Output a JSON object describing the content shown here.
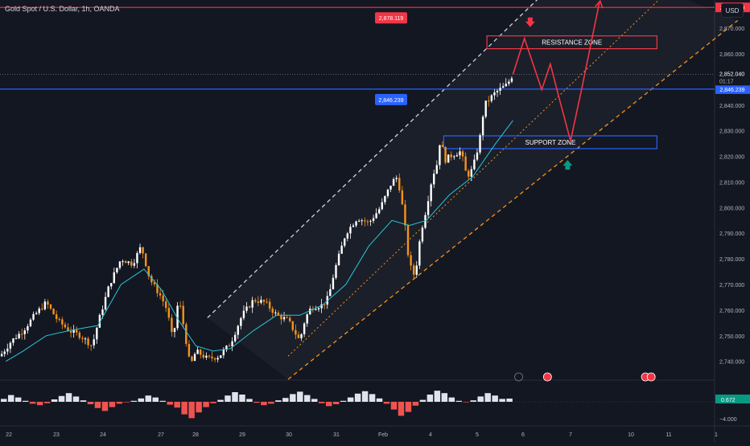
{
  "header": {
    "title": "Gold Spot / U.S. Dollar, 1h, OANDA",
    "currency_button": "USD"
  },
  "chart_data": {
    "type": "candlestick",
    "symbol": "Gold Spot / U.S. Dollar",
    "interval": "1h",
    "source": "OANDA",
    "y_axis": {
      "ticks": [
        2740,
        2750,
        2760,
        2770,
        2780,
        2790,
        2800,
        2810,
        2820,
        2830,
        2840,
        2850,
        2860,
        2870
      ],
      "ylim": [
        2733,
        2881
      ]
    },
    "x_axis": {
      "ticks": [
        "22",
        "23",
        "24",
        "27",
        "28",
        "29",
        "30",
        "31",
        "Feb",
        "4",
        "5",
        "6",
        "7",
        "10",
        "11",
        "1"
      ]
    },
    "price_path": [
      [
        0,
        2742
      ],
      [
        2,
        2748
      ],
      [
        4,
        2752
      ],
      [
        6,
        2758
      ],
      [
        8,
        2763
      ],
      [
        10,
        2756
      ],
      [
        12,
        2752
      ],
      [
        14,
        2750
      ],
      [
        16,
        2746
      ],
      [
        17,
        2755
      ],
      [
        19,
        2770
      ],
      [
        21,
        2780
      ],
      [
        23,
        2778
      ],
      [
        24.5,
        2785
      ],
      [
        26,
        2772
      ],
      [
        28,
        2765
      ],
      [
        29,
        2760
      ],
      [
        30,
        2748
      ],
      [
        31,
        2765
      ],
      [
        32,
        2752
      ],
      [
        33,
        2738
      ],
      [
        34,
        2744
      ],
      [
        36,
        2741
      ],
      [
        38,
        2742
      ],
      [
        40,
        2747
      ],
      [
        42,
        2758
      ],
      [
        44,
        2764
      ],
      [
        46,
        2763
      ],
      [
        48,
        2758
      ],
      [
        50,
        2756
      ],
      [
        52,
        2748
      ],
      [
        53,
        2757
      ],
      [
        54,
        2761
      ],
      [
        56,
        2762
      ],
      [
        57,
        2765
      ],
      [
        58,
        2775
      ],
      [
        60,
        2790
      ],
      [
        62,
        2796
      ],
      [
        64,
        2794
      ],
      [
        66,
        2800
      ],
      [
        68,
        2810
      ],
      [
        69,
        2812
      ],
      [
        70,
        2798
      ],
      [
        71,
        2778
      ],
      [
        72,
        2773
      ],
      [
        73,
        2790
      ],
      [
        74,
        2800
      ],
      [
        75,
        2812
      ],
      [
        76,
        2818
      ],
      [
        76.5,
        2830
      ],
      [
        77,
        2818
      ],
      [
        78,
        2820
      ],
      [
        79,
        2821
      ],
      [
        80,
        2822
      ],
      [
        81,
        2812
      ],
      [
        82,
        2815
      ],
      [
        83,
        2824
      ],
      [
        83.5,
        2830
      ],
      [
        84,
        2840
      ],
      [
        86,
        2845
      ],
      [
        88,
        2848
      ],
      [
        89,
        2852
      ]
    ],
    "price_ma": [
      [
        1,
        2740
      ],
      [
        4,
        2744
      ],
      [
        8,
        2750
      ],
      [
        12,
        2752
      ],
      [
        17,
        2754
      ],
      [
        21,
        2770
      ],
      [
        25,
        2776
      ],
      [
        28,
        2768
      ],
      [
        31,
        2756
      ],
      [
        34,
        2746
      ],
      [
        37,
        2744
      ],
      [
        40,
        2745
      ],
      [
        44,
        2752
      ],
      [
        48,
        2758
      ],
      [
        52,
        2758
      ],
      [
        56,
        2762
      ],
      [
        60,
        2770
      ],
      [
        64,
        2785
      ],
      [
        68,
        2795
      ],
      [
        71,
        2793
      ],
      [
        74,
        2795
      ],
      [
        78,
        2805
      ],
      [
        82,
        2812
      ],
      [
        86,
        2825
      ],
      [
        89,
        2834
      ]
    ],
    "x_max": 124,
    "levels": [
      {
        "name": "upper-resistance",
        "value": 2878.119,
        "label": "2,878.119",
        "color": "#f23645"
      },
      {
        "name": "current-support",
        "value": 2846.239,
        "label": "2,846.239",
        "color": "#2962ff"
      }
    ],
    "last_price": {
      "value": 2852.04,
      "label": "2,852.040",
      "countdown": "01:17"
    },
    "zones": [
      {
        "label": "RESISTANCE ZONE",
        "x1": 84.5,
        "x2": 114,
        "y_low": 2862,
        "y_high": 2867,
        "color": "#f23645"
      },
      {
        "label": "SUPPORT ZONE",
        "x1": 77,
        "x2": 114,
        "y_low": 2823,
        "y_high": 2828,
        "color": "#2962ff"
      }
    ],
    "channel": {
      "upper": {
        "x1": 36,
        "y1": 2757,
        "x2": 101,
        "y2": 2898
      },
      "middle": {
        "x1": 50,
        "y1": 2742,
        "x2": 118,
        "y2": 2889
      },
      "lower": {
        "x1": 50,
        "y1": 2733,
        "x2": 128,
        "y2": 2873
      }
    },
    "projection_path": [
      [
        89,
        2852
      ],
      [
        91,
        2866
      ],
      [
        94,
        2846
      ],
      [
        95.5,
        2856
      ],
      [
        97,
        2843
      ],
      [
        99,
        2826
      ],
      [
        101,
        2847
      ],
      [
        104,
        2880
      ]
    ],
    "arrows": [
      {
        "name": "down-arrow",
        "x": 92,
        "value": 2872,
        "direction": "down",
        "color": "#f23645"
      },
      {
        "name": "up-arrow",
        "x": 98.5,
        "value": 2817,
        "direction": "up",
        "color": "#089981"
      }
    ],
    "oscillator": {
      "value_label": "0.672",
      "ticks": [
        "−4.000"
      ],
      "histogram": [
        0.6,
        1.4,
        0.9,
        0.2,
        -0.4,
        -0.7,
        -0.3,
        0.5,
        1.2,
        1.8,
        1.1,
        0.3,
        -0.5,
        -1.3,
        -1.9,
        -1.1,
        -0.4,
        -0.1,
        0.2,
        0.7,
        1.3,
        0.9,
        0.2,
        -0.6,
        -1.2,
        -2.6,
        -3.4,
        -2.2,
        -1.1,
        -0.3,
        0.4,
        1.3,
        2.0,
        1.5,
        0.6,
        -0.2,
        -0.7,
        -0.4,
        0.3,
        0.8,
        1.6,
        2.1,
        1.4,
        0.6,
        -0.3,
        -0.9,
        -0.5,
        0.2,
        0.9,
        1.7,
        2.2,
        1.6,
        0.7,
        -0.4,
        -1.6,
        -2.9,
        -2.1,
        -0.8,
        0.4,
        1.5,
        2.3,
        1.8,
        0.9,
        0.2,
        -0.1,
        0.3,
        1.1,
        1.8,
        1.3,
        0.6,
        0.672
      ]
    },
    "event_markers": [
      {
        "name": "flash-icon",
        "x": 90
      },
      {
        "name": "flag-icon-1",
        "x": 95
      },
      {
        "name": "flag-icon-2",
        "x": 112
      },
      {
        "name": "flag-icon-3",
        "x": 113
      }
    ]
  }
}
